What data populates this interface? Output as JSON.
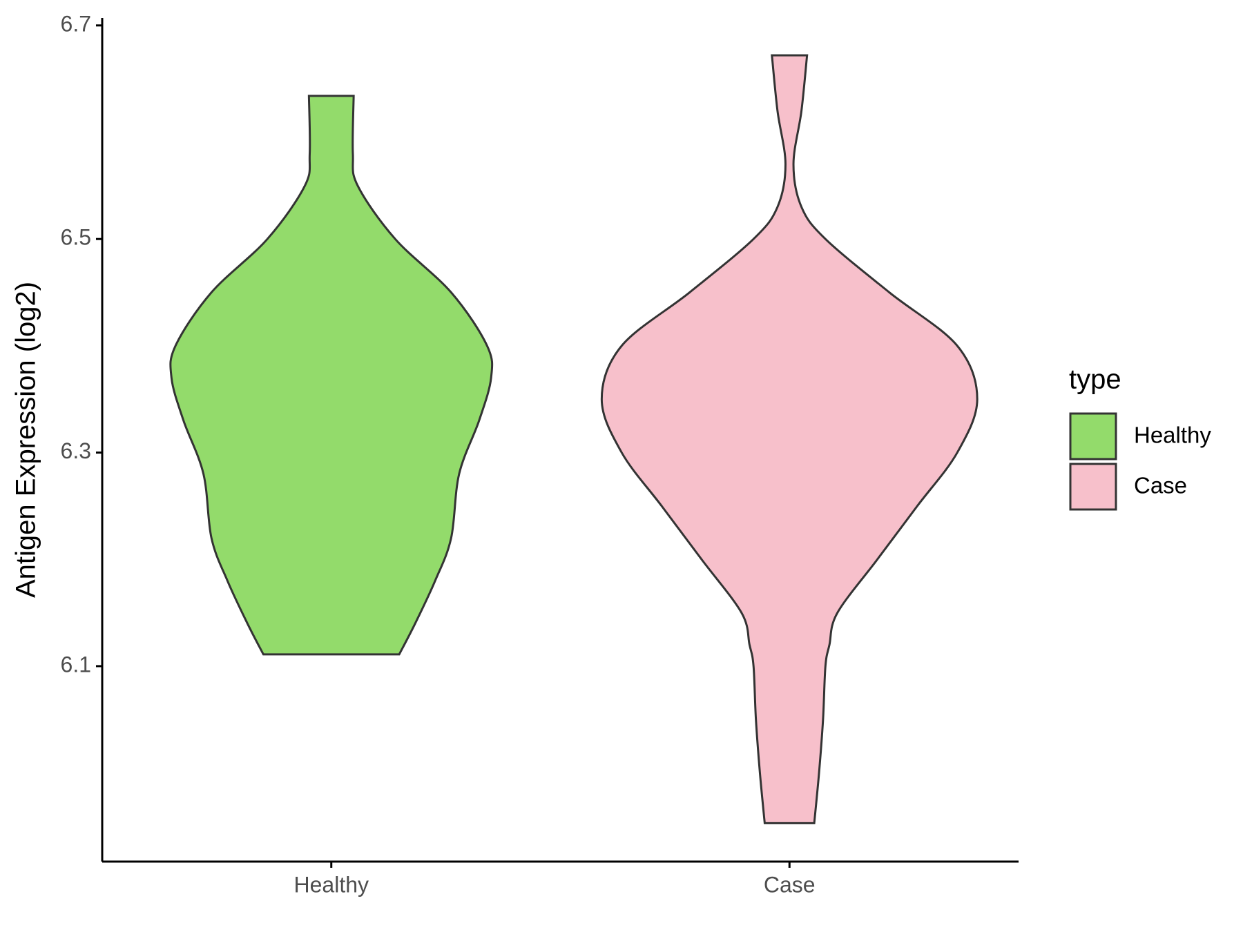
{
  "chart_data": {
    "type": "violin",
    "y_label": "Antigen Expression (log2)",
    "categories": [
      "Healthy",
      "Case"
    ],
    "legend_title": "type",
    "legend": "right",
    "ylim": [
      5.917,
      6.707
    ],
    "yticks": [
      6.1,
      6.3,
      6.5,
      6.7
    ],
    "series": [
      {
        "name": "Healthy",
        "color": "#93DB6B",
        "y": [
          6.634,
          6.58,
          6.55,
          6.5,
          6.45,
          6.4,
          6.37,
          6.33,
          6.28,
          6.22,
          6.18,
          6.14,
          6.111
        ],
        "density": [
          28,
          27,
          33,
          80,
          150,
          195,
          200,
          185,
          160,
          150,
          130,
          105,
          85
        ]
      },
      {
        "name": "Case",
        "color": "#F7C0CB",
        "y": [
          6.672,
          6.62,
          6.57,
          6.53,
          6.5,
          6.45,
          6.4,
          6.35,
          6.3,
          6.25,
          6.2,
          6.15,
          6.12,
          6.1,
          6.05,
          6.0,
          5.953
        ],
        "density": [
          22,
          15,
          5,
          15,
          45,
          125,
          210,
          235,
          210,
          160,
          110,
          60,
          50,
          45,
          42,
          37,
          31
        ]
      }
    ]
  }
}
